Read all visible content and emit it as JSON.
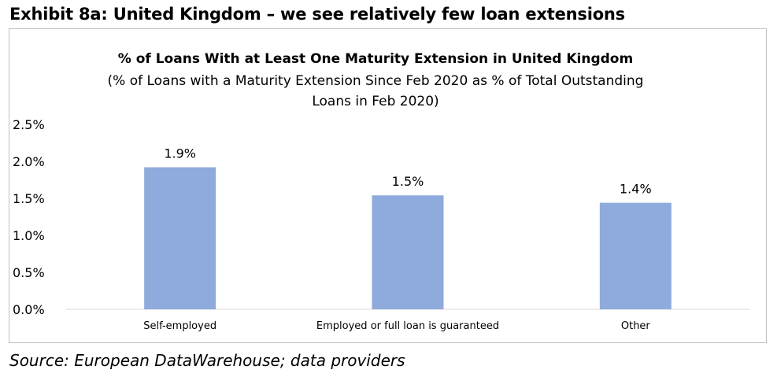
{
  "exhibit_title": "Exhibit 8a: United Kingdom – we see relatively few loan extensions",
  "source": "Source: European DataWarehouse; data providers",
  "colors": {
    "bar": "#8faadc",
    "axis": "#d9d9d9",
    "frame": "#bfbfbf"
  },
  "chart_data": {
    "type": "bar",
    "title": "% of Loans With at Least One Maturity Extension in United Kingdom",
    "subtitle_lines": [
      "(% of Loans with a Maturity Extension Since Feb 2020 as % of Total Outstanding",
      "Loans in Feb 2020)"
    ],
    "categories": [
      "Self-employed",
      "Employed or full loan is guaranteed",
      "Other"
    ],
    "values": [
      1.92,
      1.54,
      1.44
    ],
    "data_labels": [
      "1.9%",
      "1.5%",
      "1.4%"
    ],
    "y_ticks": [
      0,
      0.5,
      1.0,
      1.5,
      2.0,
      2.5
    ],
    "y_tick_labels": [
      "0.0%",
      "0.5%",
      "1.0%",
      "1.5%",
      "2.0%",
      "2.5%"
    ],
    "ylim": [
      0,
      2.5
    ],
    "xlabel": "",
    "ylabel": "",
    "grid": false,
    "legend": "none"
  }
}
